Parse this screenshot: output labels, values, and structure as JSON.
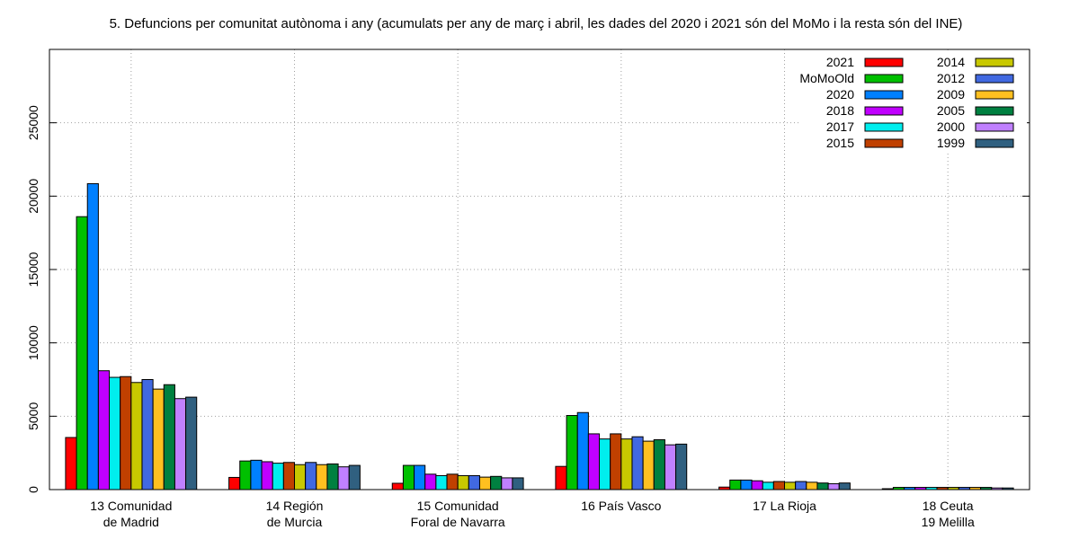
{
  "chart_data": {
    "type": "bar",
    "title": "5. Defuncions per comunitat autònoma i any (acumulats per any de març i abril, les dades del 2020 i 2021 són del MoMo i la resta són del INE)",
    "xlabel": "",
    "ylabel": "",
    "ylim": [
      0,
      30000
    ],
    "yticks": [
      0,
      5000,
      10000,
      15000,
      20000,
      25000
    ],
    "grid": true,
    "legend_position": "top-right",
    "categories": [
      [
        "13 Comunidad",
        "de Madrid"
      ],
      [
        "14 Región",
        "de Murcia"
      ],
      [
        "15 Comunidad",
        "Foral de Navarra"
      ],
      [
        "16 País Vasco"
      ],
      [
        "17 La Rioja"
      ],
      [
        "18 Ceuta",
        "19 Melilla"
      ]
    ],
    "series": [
      {
        "name": "2021",
        "color": "#ff0000",
        "values": [
          3550,
          830,
          430,
          1580,
          170,
          60
        ]
      },
      {
        "name": "MoMoOld",
        "color": "#00c000",
        "values": [
          18600,
          1950,
          1650,
          5050,
          650,
          150
        ]
      },
      {
        "name": "2020",
        "color": "#0080ff",
        "values": [
          20850,
          2000,
          1650,
          5250,
          650,
          150
        ]
      },
      {
        "name": "2018",
        "color": "#c000ff",
        "values": [
          8100,
          1900,
          1050,
          3800,
          600,
          150
        ]
      },
      {
        "name": "2017",
        "color": "#00eeee",
        "values": [
          7650,
          1800,
          950,
          3450,
          500,
          150
        ]
      },
      {
        "name": "2015",
        "color": "#c04000",
        "values": [
          7700,
          1850,
          1050,
          3800,
          550,
          150
        ]
      },
      {
        "name": "2014",
        "color": "#c8c800",
        "values": [
          7300,
          1700,
          950,
          3450,
          500,
          150
        ]
      },
      {
        "name": "2012",
        "color": "#4169e1",
        "values": [
          7500,
          1850,
          950,
          3600,
          550,
          150
        ]
      },
      {
        "name": "2009",
        "color": "#ffc020",
        "values": [
          6850,
          1700,
          850,
          3300,
          500,
          150
        ]
      },
      {
        "name": "2005",
        "color": "#008040",
        "values": [
          7150,
          1750,
          900,
          3400,
          450,
          150
        ]
      },
      {
        "name": "2000",
        "color": "#c080ff",
        "values": [
          6200,
          1550,
          800,
          3050,
          400,
          110
        ]
      },
      {
        "name": "1999",
        "color": "#306080",
        "values": [
          6300,
          1650,
          800,
          3100,
          450,
          110
        ]
      }
    ]
  }
}
